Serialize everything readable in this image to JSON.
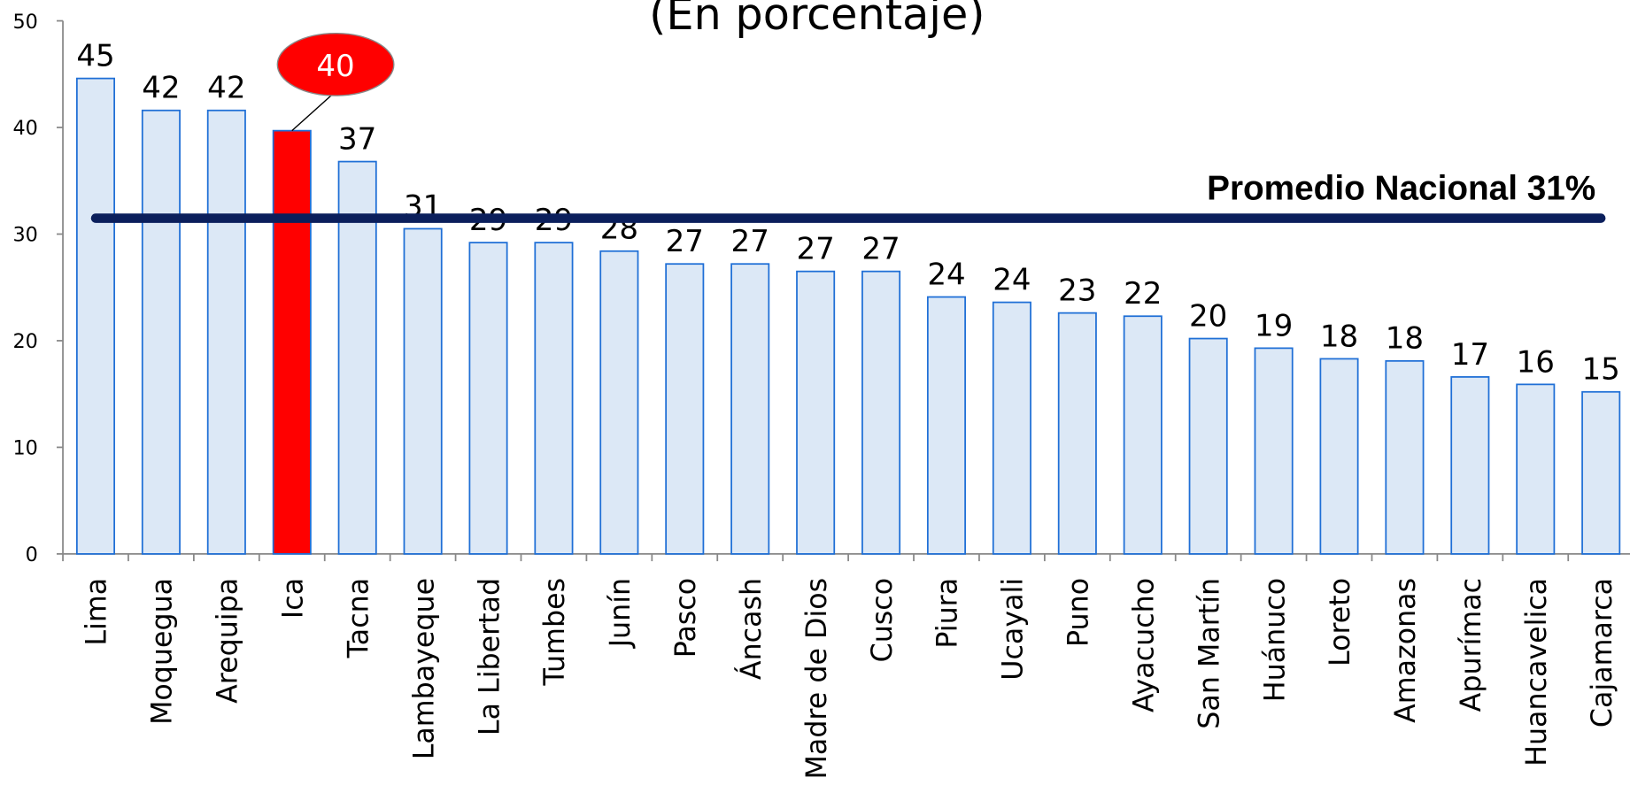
{
  "chart_data": {
    "type": "bar",
    "title": "(En porcentaje)",
    "categories": [
      "Lima",
      "Moquegua",
      "Arequipa",
      "Ica",
      "Tacna",
      "Lambayeque",
      "La Libertad",
      "Tumbes",
      "Junín",
      "Pasco",
      "Áncash",
      "Madre de Dios",
      "Cusco",
      "Piura",
      "Ucayali",
      "Puno",
      "Ayacucho",
      "San Martín",
      "Huánuco",
      "Loreto",
      "Amazonas",
      "Apurímac",
      "Huancavelica",
      "Cajamarca"
    ],
    "values": [
      44.6,
      41.6,
      41.6,
      39.7,
      36.8,
      30.5,
      29.2,
      29.2,
      28.4,
      27.2,
      27.2,
      26.5,
      26.5,
      24.1,
      23.6,
      22.6,
      22.3,
      20.2,
      19.3,
      18.3,
      18.1,
      16.6,
      15.9,
      15.2
    ],
    "value_labels": [
      "45",
      "42",
      "42",
      "40",
      "37",
      "31",
      "29",
      "29",
      "28",
      "27",
      "27",
      "27",
      "27",
      "24",
      "24",
      "23",
      "22",
      "20",
      "19",
      "18",
      "18",
      "17",
      "16",
      "15"
    ],
    "color": "#dce8f6",
    "edge_color": "#1f6fd6",
    "highlight_index": 3,
    "highlight_color": "#ff0000",
    "ylim": [
      0,
      50
    ],
    "yticks": [
      0,
      10,
      20,
      30,
      40,
      50
    ],
    "average": {
      "value": 31,
      "label": "Promedio Nacional 31%",
      "color": "#0b1f5c"
    }
  }
}
